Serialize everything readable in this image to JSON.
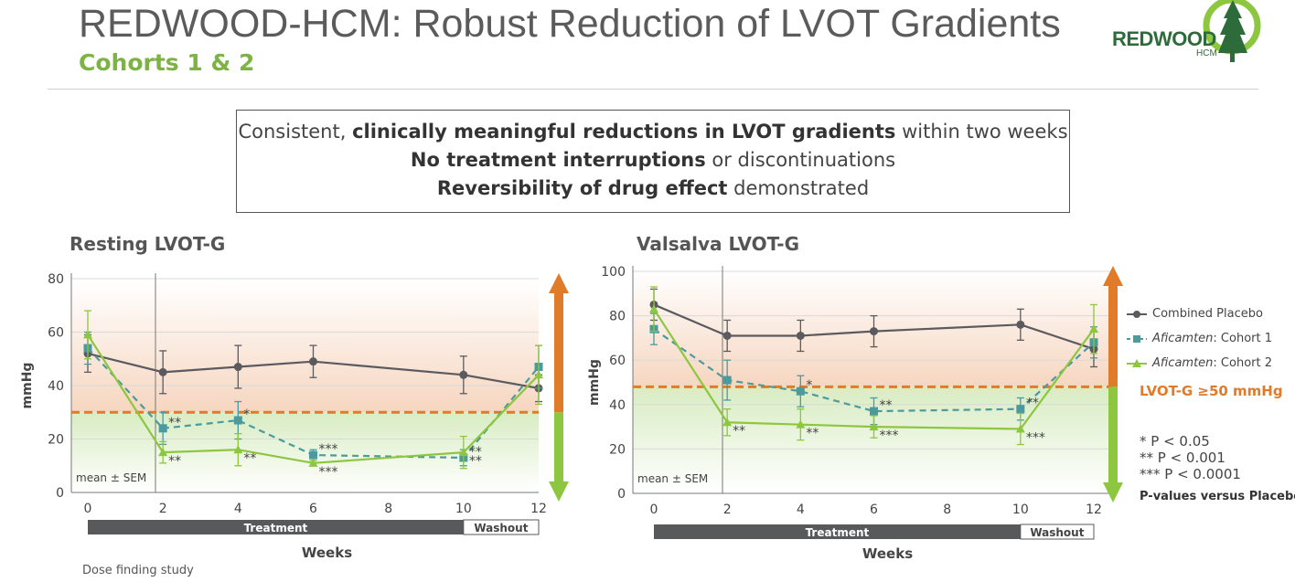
{
  "header": {
    "title": "REDWOOD-HCM: Robust Reduction of LVOT Gradients",
    "subtitle": "Cohorts 1 & 2",
    "logo_text": "REDWOOD",
    "logo_sub": "HCM"
  },
  "callout": {
    "line1_plain_a": "Consistent, ",
    "line1_bold": "clinically meaningful reductions in LVOT gradients",
    "line1_plain_b": " within two weeks",
    "line2_bold": "No treatment interruptions",
    "line2_plain": " or discontinuations",
    "line3_bold": "Reversibility of drug effect",
    "line3_plain": " demonstrated"
  },
  "legend": {
    "placebo": "Combined Placebo",
    "cohort1_italic": "Aficamten",
    "cohort1_rest": ": Cohort 1",
    "cohort2_italic": "Aficamten",
    "cohort2_rest": ": Cohort 2"
  },
  "threshold_label": "LVOT-G ≥50 mmHg",
  "pvalues": [
    "* P < 0.05",
    "** P < 0.001",
    "*** P < 0.0001"
  ],
  "pvalue_note": "P-values versus Placebo",
  "footnote": "Dose finding study",
  "colors": {
    "placebo": "#5a5a5f",
    "cohort1": "#4a9a9e",
    "cohort2": "#8dc63f",
    "orange": "#e07b2a",
    "green": "#8dc63f"
  },
  "chart_data": [
    {
      "type": "line",
      "title": "Resting LVOT-G",
      "ylabel": "mmHg",
      "xlabel": "Weeks",
      "ylim": [
        0,
        80
      ],
      "yticks": [
        0,
        20,
        40,
        60,
        80
      ],
      "xticks": [
        0,
        2,
        4,
        6,
        8,
        10,
        12
      ],
      "threshold": 30,
      "annotation": "mean ± SEM",
      "bar_labels": {
        "treatment": "Treatment",
        "washout": "Washout"
      },
      "series": [
        {
          "name": "Combined Placebo",
          "key": "placebo",
          "x": [
            0,
            2,
            4,
            6,
            10,
            12
          ],
          "y": [
            52,
            45,
            47,
            49,
            44,
            39
          ],
          "err": [
            7,
            8,
            8,
            6,
            7,
            5
          ],
          "sig": [
            "",
            "",
            "",
            "",
            "",
            ""
          ]
        },
        {
          "name": "Aficamten: Cohort 1",
          "key": "cohort1",
          "x": [
            0,
            2,
            4,
            6,
            10,
            12
          ],
          "y": [
            54,
            24,
            27,
            14,
            13,
            47
          ],
          "err": [
            6,
            6,
            7,
            2,
            3,
            8
          ],
          "sig": [
            "",
            "**",
            "*",
            "***",
            "**",
            ""
          ]
        },
        {
          "name": "Aficamten: Cohort 2",
          "key": "cohort2",
          "x": [
            0,
            2,
            4,
            6,
            10,
            12
          ],
          "y": [
            59,
            15,
            16,
            11,
            15,
            44
          ],
          "err": [
            9,
            4,
            6,
            1,
            6,
            11
          ],
          "sig": [
            "",
            "**",
            "**",
            "***",
            "**",
            ""
          ]
        }
      ]
    },
    {
      "type": "line",
      "title": "Valsalva LVOT-G",
      "ylabel": "mmHg",
      "xlabel": "Weeks",
      "ylim": [
        0,
        100
      ],
      "yticks": [
        0,
        20,
        40,
        60,
        80,
        100
      ],
      "xticks": [
        0,
        2,
        4,
        6,
        8,
        10,
        12
      ],
      "threshold": 48,
      "annotation": "mean ± SEM",
      "bar_labels": {
        "treatment": "Treatment",
        "washout": "Washout"
      },
      "series": [
        {
          "name": "Combined Placebo",
          "key": "placebo",
          "x": [
            0,
            2,
            4,
            6,
            10,
            12
          ],
          "y": [
            85,
            71,
            71,
            73,
            76,
            65
          ],
          "err": [
            7,
            7,
            7,
            7,
            7,
            8
          ],
          "sig": [
            "",
            "",
            "",
            "",
            "",
            ""
          ]
        },
        {
          "name": "Aficamten: Cohort 1",
          "key": "cohort1",
          "x": [
            0,
            2,
            4,
            6,
            10,
            12
          ],
          "y": [
            74,
            51,
            46,
            37,
            38,
            68
          ],
          "err": [
            7,
            9,
            7,
            6,
            5,
            7
          ],
          "sig": [
            "",
            "",
            "*",
            "**",
            "**",
            ""
          ]
        },
        {
          "name": "Aficamten: Cohort 2",
          "key": "cohort2",
          "x": [
            0,
            2,
            4,
            6,
            10,
            12
          ],
          "y": [
            83,
            32,
            31,
            30,
            29,
            74
          ],
          "err": [
            10,
            6,
            7,
            5,
            7,
            11
          ],
          "sig": [
            "",
            "**",
            "**",
            "***",
            "***",
            ""
          ]
        }
      ]
    }
  ]
}
